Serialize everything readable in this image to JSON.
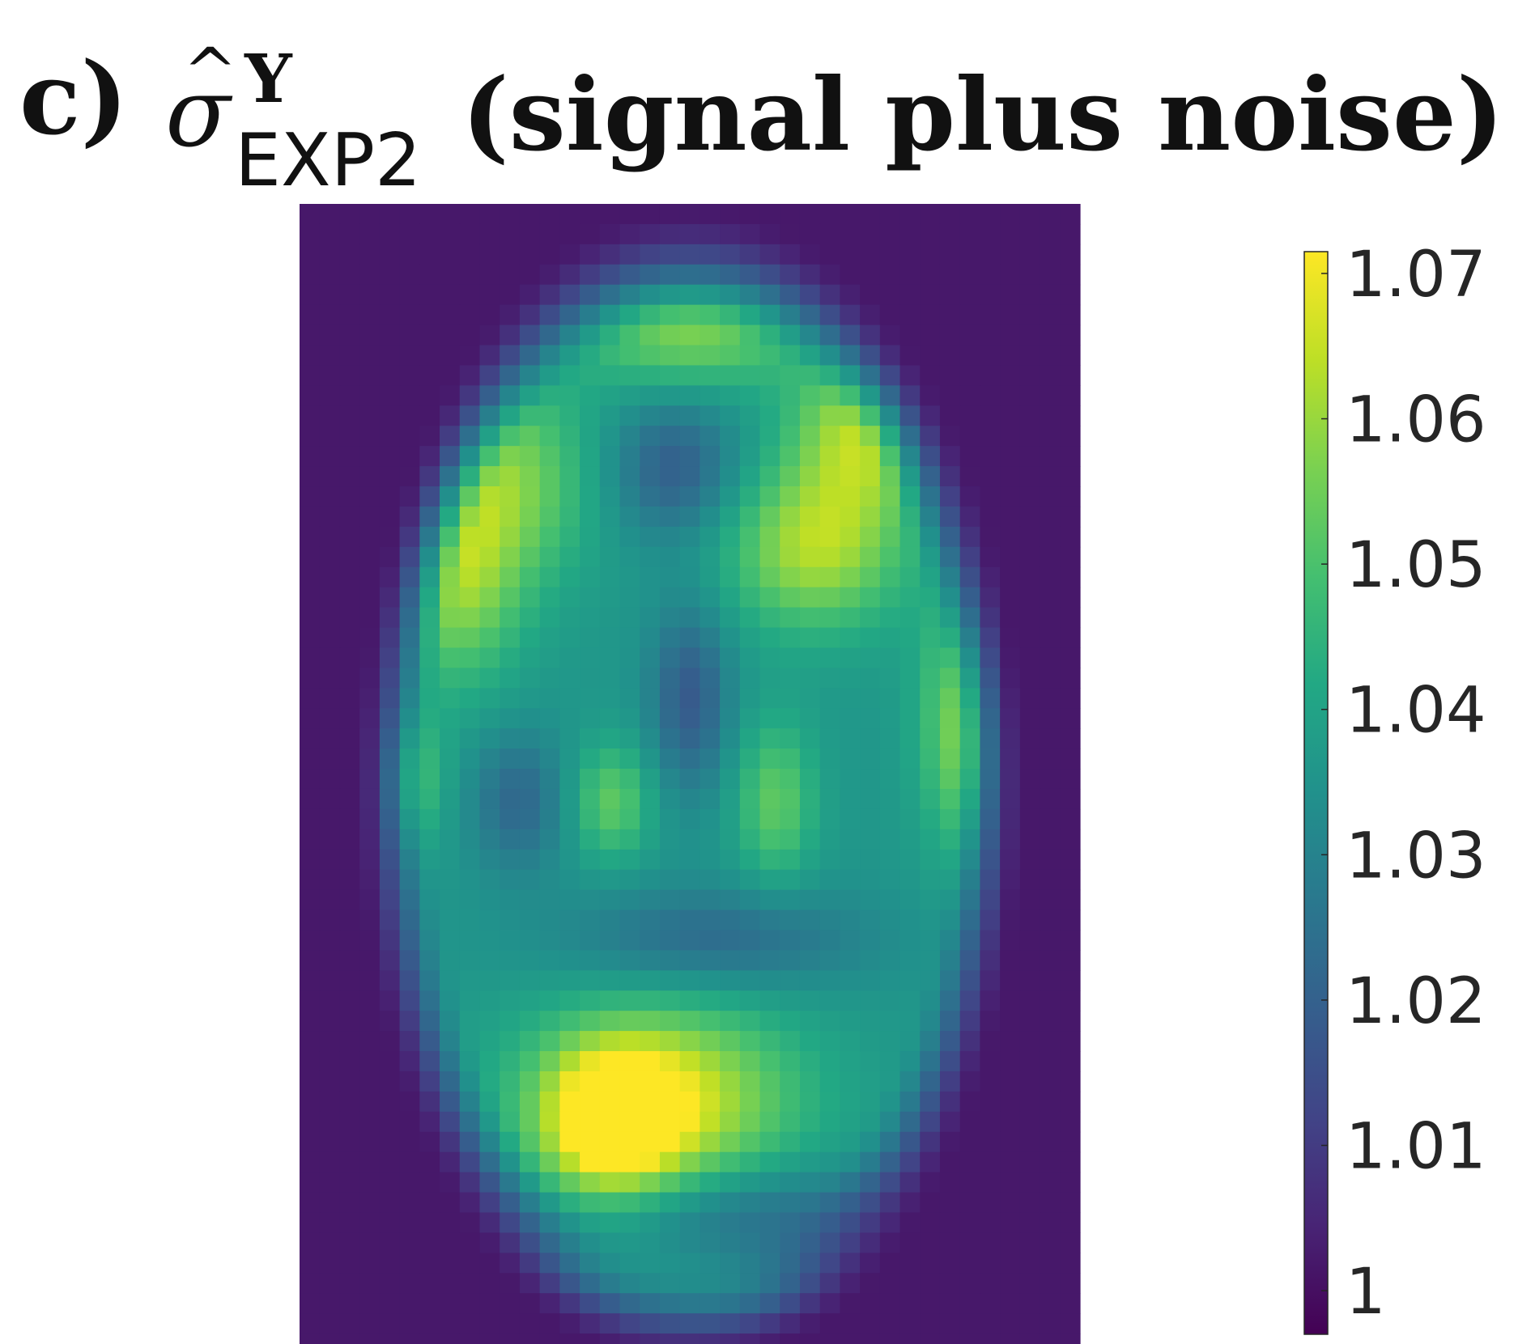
{
  "title": {
    "panel": "c)",
    "symbol": "σ",
    "hat": "^",
    "superscript": "Y",
    "subscript": "EXP2",
    "rest": "(signal plus noise)"
  },
  "chart_data": {
    "type": "heatmap",
    "title": "c) σ̂ Y EXP2 (signal plus noise)",
    "colormap": "viridis",
    "colorbar": {
      "range": [
        0.997,
        1.0715
      ],
      "ticks": [
        1.07,
        1.06,
        1.05,
        1.04,
        1.03,
        1.02,
        1.01,
        1
      ],
      "tick_labels": [
        "1.07",
        "1.06",
        "1.05",
        "1.04",
        "1.03",
        "1.02",
        "1.01",
        "1"
      ]
    },
    "grid": {
      "rows": 57,
      "cols": 39
    },
    "background_value": 1.002,
    "features": [
      {
        "region": "brain mask",
        "value": 1.036
      },
      {
        "region": "frontal left lobe",
        "value": 1.057
      },
      {
        "region": "frontal right lobe",
        "value": 1.062
      },
      {
        "region": "right lateral strip",
        "value": 1.061
      },
      {
        "region": "frontal midline",
        "value": 1.019
      },
      {
        "region": "central midline",
        "value": 1.018
      },
      {
        "region": "posterior band",
        "value": 1.022
      },
      {
        "region": "occipital region",
        "value": 1.068
      },
      {
        "region": "posterior rim",
        "value": 1.053
      }
    ]
  }
}
